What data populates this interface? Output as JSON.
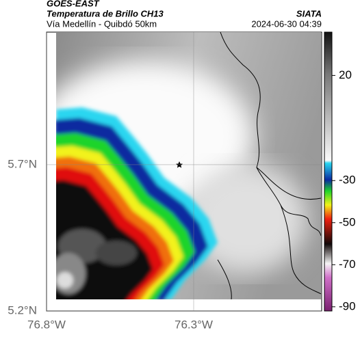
{
  "header": {
    "title": "GOES-EAST",
    "subtitle": "Temperatura de Brillo CH13",
    "place": "Vía Medellín - Quibdó 50km",
    "source": "SIATA",
    "datetime": "2024-06-30 04:39"
  },
  "map": {
    "lonlim": [
      -76.8,
      -75.865
    ],
    "latlim": [
      5.2,
      6.153
    ],
    "lon_ticks": [
      {
        "value": -76.8,
        "label": "76.8°W"
      },
      {
        "value": -76.3,
        "label": "76.3°W"
      }
    ],
    "lat_ticks": [
      {
        "value": 5.2,
        "label": "5.2°N"
      },
      {
        "value": 5.7,
        "label": "5.7°N"
      }
    ]
  },
  "colorbar": {
    "lim": [
      -92,
      40.6
    ],
    "ticks": [
      20,
      -30,
      -50,
      -70,
      -90
    ]
  }
}
